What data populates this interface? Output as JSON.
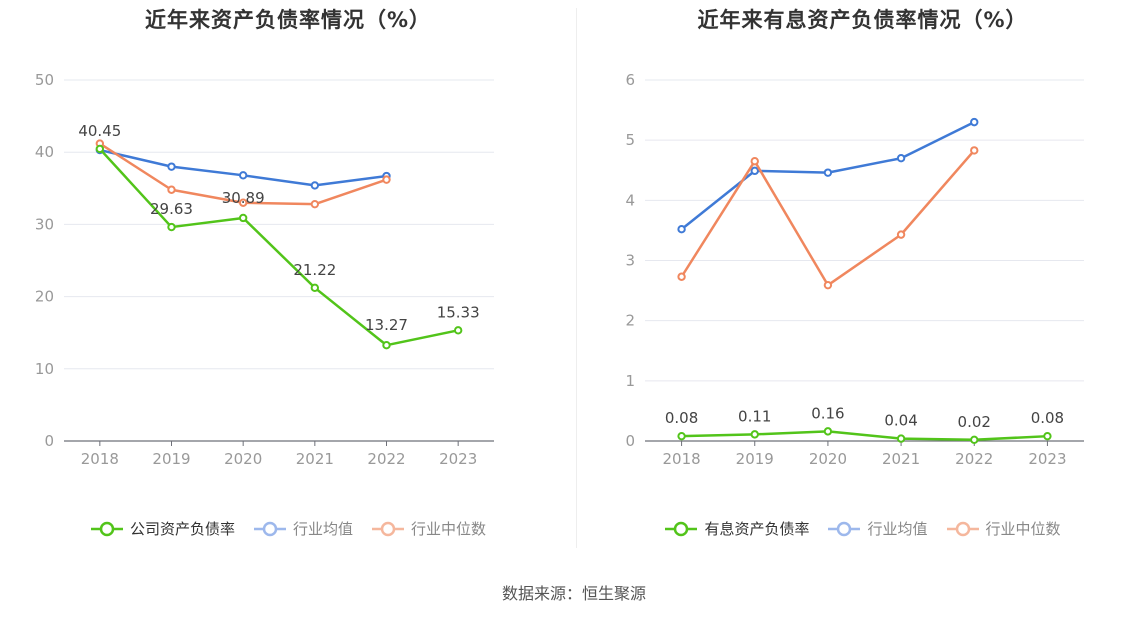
{
  "source_label": "数据来源：恒生聚源",
  "colors": {
    "company": "#52c41a",
    "avg": "#3f7ad6",
    "median": "#f0875e",
    "axis": "#999999",
    "grid": "#e6e8ef"
  },
  "chart_data": [
    {
      "type": "line",
      "title": "近年来资产负债率情况（%）",
      "categories": [
        "2018",
        "2019",
        "2020",
        "2021",
        "2022",
        "2023"
      ],
      "ylim": [
        0,
        50
      ],
      "yticks": [
        0,
        10,
        20,
        30,
        40,
        50
      ],
      "grid": true,
      "legend_position": "bottom",
      "series": [
        {
          "name": "公司资产负债率",
          "color": "#52c41a",
          "values": [
            40.45,
            29.63,
            30.89,
            21.22,
            13.27,
            15.33
          ],
          "labels": [
            "40.45",
            "29.63",
            "30.89",
            "21.22",
            "13.27",
            "15.33"
          ]
        },
        {
          "name": "行业均值",
          "color": "#3f7ad6",
          "values": [
            40.3,
            38.0,
            36.8,
            35.4,
            36.7,
            null
          ]
        },
        {
          "name": "行业中位数",
          "color": "#f0875e",
          "values": [
            41.2,
            34.8,
            33.0,
            32.8,
            36.2,
            null
          ]
        }
      ]
    },
    {
      "type": "line",
      "title": "近年来有息资产负债率情况（%）",
      "categories": [
        "2018",
        "2019",
        "2020",
        "2021",
        "2022",
        "2023"
      ],
      "ylim": [
        0,
        6
      ],
      "yticks": [
        0,
        1,
        2,
        3,
        4,
        5,
        6
      ],
      "grid": true,
      "legend_position": "bottom",
      "series": [
        {
          "name": "有息资产负债率",
          "color": "#52c41a",
          "values": [
            0.08,
            0.11,
            0.16,
            0.04,
            0.02,
            0.08
          ],
          "labels": [
            "0.08",
            "0.11",
            "0.16",
            "0.04",
            "0.02",
            "0.08"
          ]
        },
        {
          "name": "行业均值",
          "color": "#3f7ad6",
          "values": [
            3.52,
            4.49,
            4.46,
            4.7,
            5.3,
            null
          ]
        },
        {
          "name": "行业中位数",
          "color": "#f0875e",
          "values": [
            2.73,
            4.65,
            2.59,
            3.43,
            4.83,
            null
          ]
        }
      ]
    }
  ]
}
